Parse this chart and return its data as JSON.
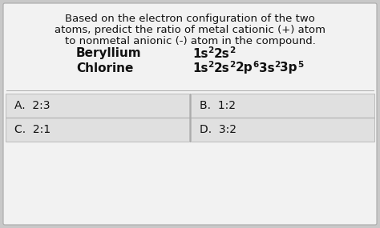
{
  "bg_color": "#c8c8c8",
  "card_color": "#f2f2f2",
  "answer_box_color": "#e0e0e0",
  "text_color": "#111111",
  "border_color": "#aaaaaa",
  "q_line1": "Based on the electron configuration of the two",
  "q_line2": "atoms, predict the ratio of metal cationic (+) atom",
  "q_line3": "to nonmetal anionic (-) atom in the compound.",
  "el1_name": "Beryllium",
  "el1_config_parts": [
    "1s",
    "2",
    "2s",
    "2"
  ],
  "el2_name": "Chlorine",
  "el2_config_parts": [
    "1s",
    "2",
    "2s",
    "2",
    "2p",
    "6",
    "3s",
    "2",
    "3p",
    "5"
  ],
  "answer_A": "A.  2:3",
  "answer_B": "B.  1:2",
  "answer_C": "C.  2:1",
  "answer_D": "D.  3:2",
  "font_size_q": 9.5,
  "font_size_el": 11.0,
  "font_size_ans": 10.0,
  "font_size_sup": 7.5
}
